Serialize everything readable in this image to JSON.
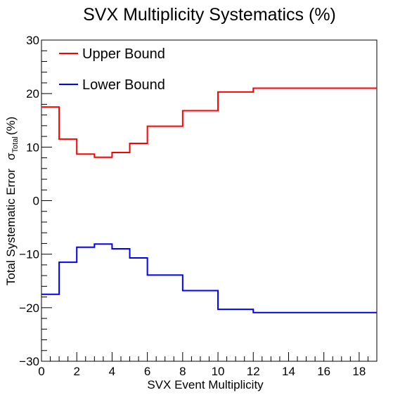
{
  "chart_data": {
    "type": "line",
    "step": true,
    "title": "SVX Multiplicity Systematics (%)",
    "xlabel": "SVX Event Multiplicity",
    "ylabel_main": "Total Systematic Error",
    "ylabel_sigma": "σ",
    "ylabel_subscript": "Total",
    "ylabel_unit": "(%)",
    "xlim": [
      0,
      19
    ],
    "ylim": [
      -30,
      30
    ],
    "x_ticks": [
      "0",
      "2",
      "4",
      "6",
      "8",
      "10",
      "12",
      "14",
      "16",
      "18"
    ],
    "y_ticks": [
      "−30",
      "−20",
      "−10",
      "0",
      "10",
      "20",
      "30"
    ],
    "bin_edges": [
      0,
      1,
      2,
      3,
      4,
      5,
      6,
      8,
      10,
      12,
      19
    ],
    "legend_position": "top-left",
    "series": [
      {
        "name": "Upper Bound",
        "color": "#ff0000",
        "values": [
          17.5,
          11.5,
          8.7,
          8.1,
          9.0,
          10.7,
          13.9,
          16.8,
          20.3,
          21.0
        ]
      },
      {
        "name": "Lower Bound",
        "color": "#0000ff",
        "values": [
          -17.5,
          -11.5,
          -8.7,
          -8.1,
          -9.0,
          -10.7,
          -13.9,
          -16.8,
          -20.3,
          -20.9
        ]
      }
    ]
  }
}
